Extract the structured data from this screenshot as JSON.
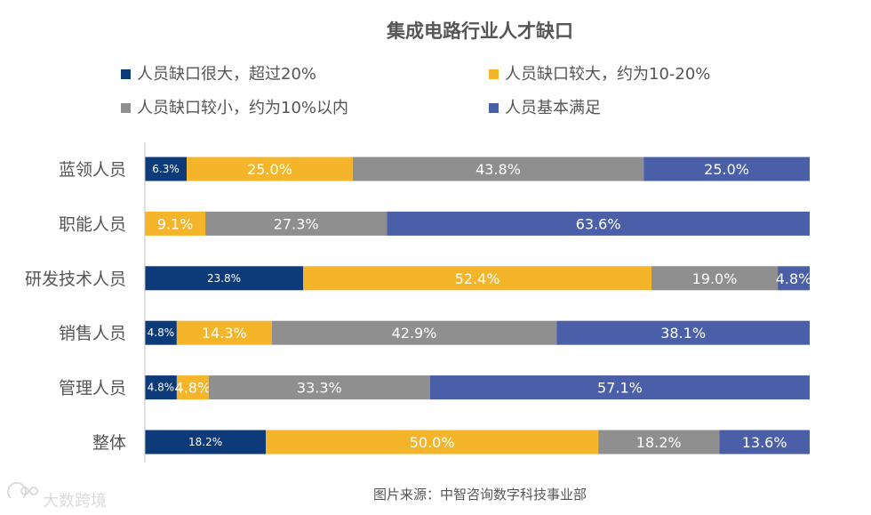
{
  "chart_data": {
    "type": "bar",
    "orientation": "horizontal",
    "stacked": true,
    "title": "集成电路行业人才缺口",
    "legend_position": "top",
    "categories": [
      "蓝领人员",
      "职能人员",
      "研发技术人员",
      "销售人员",
      "管理人员",
      "整体"
    ],
    "series": [
      {
        "name": "人员缺口很大，超过20%",
        "color": "#0d3b7a",
        "text_color": "#ffffff",
        "labels": [
          "6.3%",
          "",
          "23.8%",
          "4.8%",
          "4.8%",
          "18.2%"
        ],
        "values": [
          6.3,
          0,
          23.8,
          4.8,
          4.8,
          18.2
        ]
      },
      {
        "name": "人员缺口较大，约为10-20%",
        "color": "#f5b52a",
        "text_color": "#ffffff",
        "labels": [
          "25.0%",
          "9.1%",
          "52.4%",
          "14.3%",
          "4.8%",
          "50.0%"
        ],
        "values": [
          25.0,
          9.1,
          52.4,
          14.3,
          4.8,
          50.0
        ]
      },
      {
        "name": "人员缺口较小，约为10%以内",
        "color": "#8f8f8f",
        "text_color": "#ffffff",
        "labels": [
          "43.8%",
          "27.3%",
          "19.0%",
          "42.9%",
          "33.3%",
          "18.2%"
        ],
        "values": [
          43.8,
          27.3,
          19.0,
          42.9,
          33.3,
          18.2
        ]
      },
      {
        "name": "人员基本满足",
        "color": "#4a5fa8",
        "text_color": "#ffffff",
        "labels": [
          "25.0%",
          "63.6%",
          "4.8%",
          "38.1%",
          "57.1%",
          "13.6%"
        ],
        "values": [
          25.0,
          63.6,
          4.8,
          38.1,
          57.1,
          13.6
        ]
      }
    ]
  },
  "source": "图片来源：中智咨询数字科技事业部",
  "watermark": "大数跨境"
}
